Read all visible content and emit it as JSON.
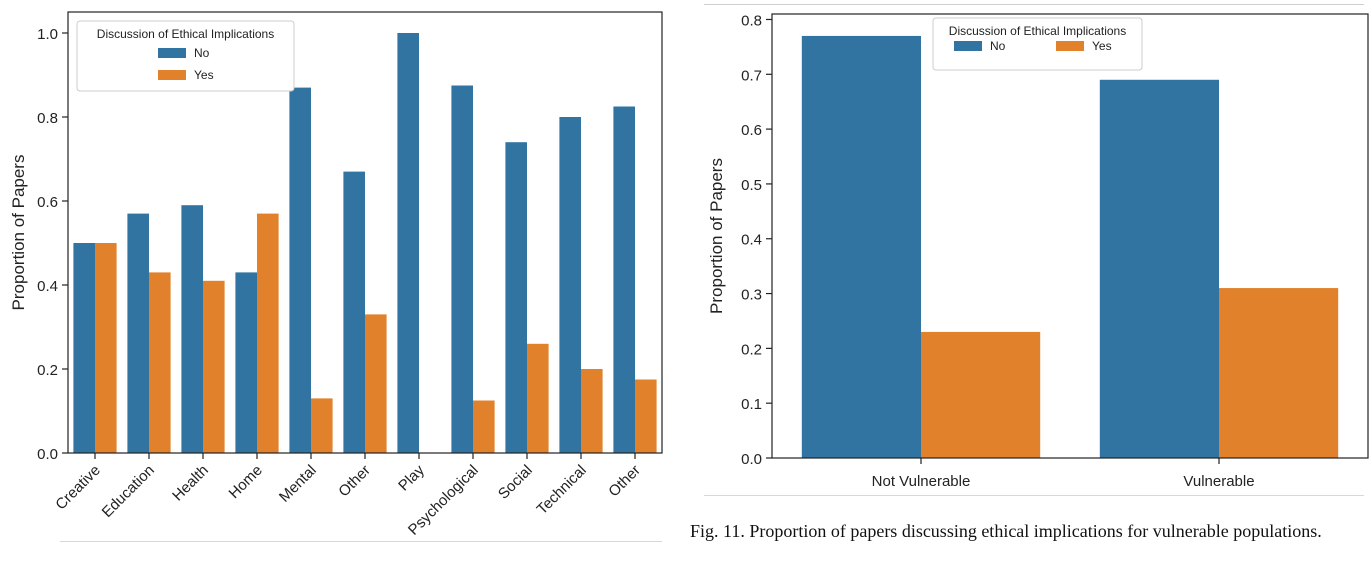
{
  "chart_data": [
    {
      "type": "bar",
      "categories": [
        "Creative",
        "Education",
        "Health",
        "Home",
        "Mental",
        "Other",
        "Play",
        "Psychological",
        "Social",
        "Technical",
        "Other"
      ],
      "series": [
        {
          "name": "No",
          "values": [
            0.5,
            0.57,
            0.59,
            0.43,
            0.87,
            0.67,
            1.0,
            0.875,
            0.74,
            0.8,
            0.825
          ],
          "color": "#3274a1"
        },
        {
          "name": "Yes",
          "values": [
            0.5,
            0.43,
            0.41,
            0.57,
            0.13,
            0.33,
            0.0,
            0.125,
            0.26,
            0.2,
            0.175
          ],
          "color": "#e1812c"
        }
      ],
      "ylabel": "Proportion of Papers",
      "xlabel": "",
      "legend_title": "Discussion of Ethical Implications",
      "legend_position": "top-left",
      "ylim": [
        0,
        1.05
      ],
      "yticks": [
        0.0,
        0.2,
        0.4,
        0.6,
        0.8,
        1.0
      ],
      "grid": false
    },
    {
      "type": "bar",
      "categories": [
        "Not Vulnerable",
        "Vulnerable"
      ],
      "series": [
        {
          "name": "No",
          "values": [
            0.77,
            0.69
          ],
          "color": "#3274a1"
        },
        {
          "name": "Yes",
          "values": [
            0.23,
            0.31
          ],
          "color": "#e1812c"
        }
      ],
      "ylabel": "Proportion of Papers",
      "xlabel": "",
      "legend_title": "Discussion of Ethical Implications",
      "legend_position": "top-center",
      "ylim": [
        0,
        0.81
      ],
      "yticks": [
        0.0,
        0.1,
        0.2,
        0.3,
        0.4,
        0.5,
        0.6,
        0.7,
        0.8
      ],
      "grid": false
    }
  ],
  "caption": "Fig. 11.  Proportion of papers discussing ethical implications for vulnerable populations."
}
